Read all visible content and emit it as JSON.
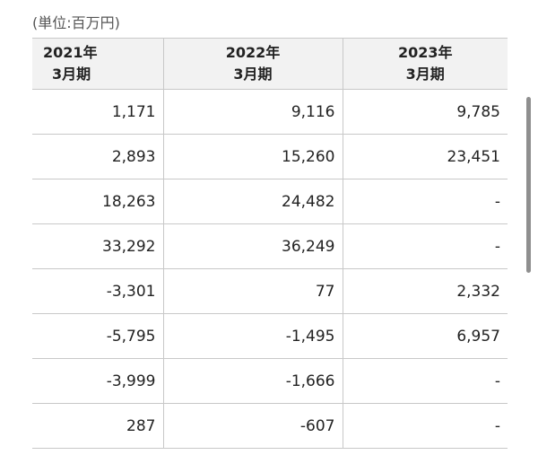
{
  "unit_label": "(単位:百万円)",
  "columns": [
    {
      "year": "2021年",
      "period": "3月期"
    },
    {
      "year": "2022年",
      "period": "3月期"
    },
    {
      "year": "2023年",
      "period": "3月期"
    }
  ],
  "rows": [
    [
      "1,171",
      "9,116",
      "9,785"
    ],
    [
      "2,893",
      "15,260",
      "23,451"
    ],
    [
      "18,263",
      "24,482",
      "-"
    ],
    [
      "33,292",
      "36,249",
      "-"
    ],
    [
      "-3,301",
      "77",
      "2,332"
    ],
    [
      "-5,795",
      "-1,495",
      "6,957"
    ],
    [
      "-3,999",
      "-1,666",
      "-"
    ],
    [
      "287",
      "-607",
      "-"
    ]
  ]
}
